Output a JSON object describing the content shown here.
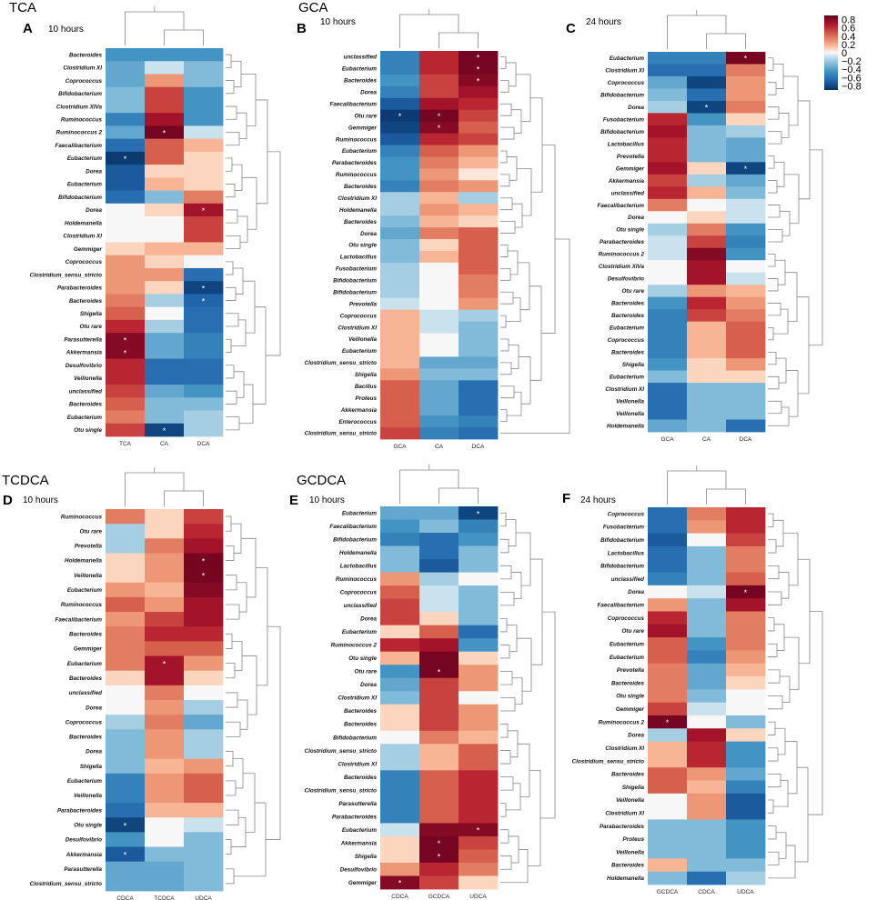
{
  "chart_data": [
    {
      "type": "heatmap",
      "letter": "A",
      "group_title": "TCA",
      "time": "10 hours",
      "columns": [
        "TCA",
        "CA",
        "DCA"
      ],
      "rows": [
        "Bacteroides",
        "Clostridium XI",
        "Coprococcus",
        "Bifidobacterium",
        "Clostridium XIVa",
        "Ruminococcus",
        "Ruminococcus 2",
        "Faecalibacterium",
        "Eubacterium",
        "Dorea",
        "Eubacterium",
        "Bifidobacterium",
        "Dorea",
        "Holdemanella",
        "Clostridium XI",
        "Gemmiger",
        "Coprococcus",
        "Clostridium_sensu_stricto",
        "Parabacteroides",
        "Bacteroides",
        "Shigella",
        "Otu rare",
        "Parasutterella",
        "Akkermansia",
        "Desulfovibrio",
        "Veillonella",
        "unclassified",
        "Bacteroides",
        "Eubacterium",
        "Otu single"
      ],
      "values": [
        [
          -0.5,
          -0.5,
          -0.5
        ],
        [
          -0.4,
          -0.1,
          -0.3
        ],
        [
          -0.4,
          0.3,
          -0.3
        ],
        [
          -0.3,
          0.6,
          -0.5
        ],
        [
          -0.3,
          0.6,
          -0.5
        ],
        [
          -0.6,
          0.8,
          -0.5
        ],
        [
          -0.4,
          0.95,
          -0.1
        ],
        [
          -0.7,
          0.5,
          0.2
        ],
        [
          -0.95,
          0.5,
          0.1
        ],
        [
          -0.8,
          0.1,
          0.1
        ],
        [
          -0.8,
          0.2,
          0.1
        ],
        [
          -0.7,
          -0.3,
          0.4
        ],
        [
          0,
          0.1,
          0.8
        ],
        [
          0,
          0,
          0.6
        ],
        [
          0,
          0,
          0.6
        ],
        [
          0.1,
          0.2,
          0.2
        ],
        [
          0.3,
          0.1,
          0
        ],
        [
          0.3,
          0.3,
          -0.7
        ],
        [
          0.3,
          0.1,
          -0.9
        ],
        [
          0.4,
          -0.2,
          -0.75
        ],
        [
          0.5,
          0,
          -0.7
        ],
        [
          0.7,
          -0.2,
          -0.7
        ],
        [
          0.9,
          -0.4,
          -0.6
        ],
        [
          0.9,
          -0.4,
          -0.6
        ],
        [
          0.7,
          -0.7,
          -0.7
        ],
        [
          0.7,
          -0.7,
          -0.7
        ],
        [
          0.6,
          -0.4,
          -0.5
        ],
        [
          0.5,
          -0.3,
          -0.3
        ],
        [
          0.4,
          -0.3,
          -0.2
        ],
        [
          0.6,
          -0.9,
          -0.2
        ]
      ],
      "significant": [
        [
          6,
          1
        ],
        [
          8,
          0
        ],
        [
          12,
          2
        ],
        [
          18,
          2
        ],
        [
          19,
          2
        ],
        [
          22,
          0
        ],
        [
          23,
          0
        ],
        [
          29,
          1
        ]
      ]
    },
    {
      "type": "heatmap",
      "letter": "B",
      "group_title": "GCA",
      "time": "10 hours",
      "columns": [
        "GCA",
        "CA",
        "DCA"
      ],
      "rows": [
        "unclassified",
        "Eubacterium",
        "Bacteroides",
        "Dorea",
        "Faecalibacterium",
        "Otu rare",
        "Gemmiger",
        "Ruminococcus",
        "Eubacterium",
        "Parabacteroides",
        "Ruminococcus",
        "Bacteroides",
        "Clostridium XI",
        "Holdemanella",
        "Bacteroides",
        "Dorea",
        "Otu single",
        "Lactobacillus",
        "Fusobacterium",
        "Bifidobacterium",
        "Bifidobacterium",
        "Prevotella",
        "Coprococcus",
        "Clostridium XI",
        "Veillonella",
        "Eubacterium",
        "Clostridium_sensu_stricto",
        "Shigella",
        "Bacillus",
        "Proteus",
        "Akkermansia",
        "Enterococcus",
        "Clostridium_sensu_stricto"
      ],
      "values": [
        [
          -0.6,
          0.7,
          0.95
        ],
        [
          -0.6,
          0.7,
          0.95
        ],
        [
          -0.5,
          0.6,
          0.9
        ],
        [
          -0.6,
          0.6,
          0.8
        ],
        [
          -0.8,
          0.8,
          0.7
        ],
        [
          -0.95,
          0.95,
          0.6
        ],
        [
          -0.9,
          0.9,
          0.5
        ],
        [
          -0.8,
          0.7,
          0.6
        ],
        [
          -0.6,
          0.5,
          0.3
        ],
        [
          -0.5,
          0.4,
          0.2
        ],
        [
          -0.5,
          0.3,
          0.05
        ],
        [
          -0.6,
          0.4,
          0.3
        ],
        [
          -0.2,
          0.2,
          -0.2
        ],
        [
          -0.2,
          0.3,
          0.2
        ],
        [
          -0.3,
          0.2,
          0.1
        ],
        [
          -0.4,
          0.4,
          0.5
        ],
        [
          -0.3,
          0.1,
          0.5
        ],
        [
          -0.3,
          0.2,
          0.5
        ],
        [
          -0.2,
          0,
          0.5
        ],
        [
          -0.2,
          0,
          0.4
        ],
        [
          -0.2,
          0,
          0.4
        ],
        [
          -0.1,
          0,
          0.3
        ],
        [
          0.2,
          -0.1,
          -0.2
        ],
        [
          0.2,
          -0.1,
          -0.3
        ],
        [
          0.2,
          0,
          -0.3
        ],
        [
          0.2,
          0,
          -0.3
        ],
        [
          0.2,
          -0.4,
          -0.4
        ],
        [
          0.3,
          -0.3,
          -0.3
        ],
        [
          0.5,
          -0.4,
          -0.7
        ],
        [
          0.5,
          -0.4,
          -0.7
        ],
        [
          0.5,
          -0.4,
          -0.7
        ],
        [
          0.5,
          -0.5,
          -0.6
        ],
        [
          0.6,
          -0.6,
          -0.7
        ]
      ],
      "significant": [
        [
          0,
          2
        ],
        [
          1,
          2
        ],
        [
          2,
          2
        ],
        [
          5,
          0
        ],
        [
          5,
          1
        ],
        [
          6,
          1
        ]
      ]
    },
    {
      "type": "heatmap",
      "letter": "C",
      "group_title": "",
      "time": "24 hours",
      "columns": [
        "GCA",
        "CA",
        "DCA"
      ],
      "rows": [
        "Eubacterium",
        "Clostridium XI",
        "Coprococcus",
        "Bifidobacterium",
        "Dorea",
        "Fusobacterium",
        "Bifidobacterium",
        "Lactobacillus",
        "Prevotella",
        "Gemmiger",
        "Akkermansia",
        "unclassified",
        "Faecalibacterium",
        "Dorea",
        "Otu single",
        "Parabacteroides",
        "Ruminococcus 2",
        "Clostridium XIVa",
        "Desulfovibrio",
        "Otu rare",
        "Bacteroides",
        "Bacteroides",
        "Eubacterium",
        "Coprococcus",
        "Bacteroides",
        "Shigella",
        "Eubacterium",
        "Clostridium XI",
        "Veillonella",
        "Veillonella",
        "Holdemanella"
      ],
      "values": [
        [
          -0.6,
          -0.6,
          0.95
        ],
        [
          -0.7,
          -0.7,
          0.4
        ],
        [
          -0.4,
          -0.9,
          0.3
        ],
        [
          -0.3,
          -0.7,
          0.3
        ],
        [
          -0.2,
          -0.9,
          0.4
        ],
        [
          0.7,
          -0.5,
          0.1
        ],
        [
          0.8,
          -0.3,
          -0.2
        ],
        [
          0.7,
          -0.3,
          -0.4
        ],
        [
          0.7,
          -0.3,
          -0.4
        ],
        [
          0.8,
          0.1,
          -0.9
        ],
        [
          0.6,
          -0.2,
          -0.4
        ],
        [
          0.7,
          0.2,
          -0.3
        ],
        [
          0.4,
          0,
          -0.1
        ],
        [
          0,
          0.1,
          -0.1
        ],
        [
          -0.2,
          0.4,
          -0.5
        ],
        [
          -0.1,
          0.6,
          -0.6
        ],
        [
          -0.1,
          0.9,
          -0.5
        ],
        [
          0,
          0.8,
          0
        ],
        [
          0,
          0.8,
          -0.1
        ],
        [
          -0.2,
          0.3,
          0.2
        ],
        [
          -0.5,
          0.7,
          0.3
        ],
        [
          -0.6,
          0.6,
          0.4
        ],
        [
          -0.6,
          0.2,
          0.5
        ],
        [
          -0.6,
          0.2,
          0.5
        ],
        [
          -0.6,
          0.2,
          0.5
        ],
        [
          -0.5,
          0.1,
          0.3
        ],
        [
          -0.3,
          0.1,
          0.1
        ],
        [
          -0.7,
          -0.3,
          -0.3
        ],
        [
          -0.7,
          -0.3,
          -0.3
        ],
        [
          -0.7,
          -0.3,
          -0.3
        ],
        [
          -0.4,
          -0.3,
          -0.7
        ]
      ],
      "significant": [
        [
          0,
          2
        ],
        [
          4,
          1
        ],
        [
          9,
          2
        ]
      ]
    },
    {
      "type": "heatmap",
      "letter": "D",
      "group_title": "TCDCA",
      "time": "10 hours",
      "columns": [
        "CDCA",
        "TCDCA",
        "UDCA"
      ],
      "rows": [
        "Ruminococcus",
        "Otu rare",
        "Prevotella",
        "Holdemanella",
        "Veillonella",
        "Eubacterium",
        "Ruminococcus",
        "Faecalibacterium",
        "Bacteroides",
        "Gemmiger",
        "Eubacterium",
        "Bacteroides",
        "unclassified",
        "Dorea",
        "Coprococcus",
        "Bacteroides",
        "Dorea",
        "Shigella",
        "Eubacterium",
        "Veillonella",
        "Parabacteroides",
        "Otu single",
        "Desulfovibrio",
        "Akkermansia",
        "Parasutterella",
        "Clostridium_sensu_stricto"
      ],
      "values": [
        [
          0.4,
          0.1,
          0.6
        ],
        [
          -0.2,
          0.1,
          0.7
        ],
        [
          -0.2,
          0.4,
          0.8
        ],
        [
          0.1,
          0.3,
          0.95
        ],
        [
          0.1,
          0.3,
          0.95
        ],
        [
          0.3,
          0.2,
          0.9
        ],
        [
          0.5,
          0.3,
          0.8
        ],
        [
          0.3,
          0.6,
          0.8
        ],
        [
          0.4,
          0.7,
          0.7
        ],
        [
          0.4,
          0.5,
          0.5
        ],
        [
          0.4,
          0.8,
          0.3
        ],
        [
          0.1,
          0.8,
          0.1
        ],
        [
          0,
          0.4,
          0
        ],
        [
          0,
          0.3,
          -0.2
        ],
        [
          -0.2,
          0.4,
          -0.4
        ],
        [
          -0.3,
          0.3,
          -0.2
        ],
        [
          -0.3,
          0.3,
          -0.2
        ],
        [
          -0.3,
          0.2,
          0.3
        ],
        [
          -0.6,
          0.3,
          0.5
        ],
        [
          -0.6,
          0.3,
          0.5
        ],
        [
          -0.7,
          0.2,
          0.2
        ],
        [
          -0.9,
          0,
          -0.1
        ],
        [
          -0.5,
          0,
          -0.3
        ],
        [
          -0.8,
          -0.3,
          -0.3
        ],
        [
          -0.4,
          -0.4,
          -0.3
        ],
        [
          -0.4,
          -0.4,
          -0.3
        ]
      ],
      "significant": [
        [
          3,
          2
        ],
        [
          4,
          2
        ],
        [
          10,
          1
        ],
        [
          21,
          0
        ],
        [
          23,
          0
        ]
      ]
    },
    {
      "type": "heatmap",
      "letter": "E",
      "group_title": "GCDCA",
      "time": "10 hours",
      "columns": [
        "CDCA",
        "GCDCA",
        "UDCA"
      ],
      "rows": [
        "Eubacterium",
        "Faecalibacterium",
        "Bifidobacterium",
        "Holdemanella",
        "Lactobacillus",
        "Ruminococcus",
        "Coprococcus",
        "unclassified",
        "Dorea",
        "Eubacterium",
        "Ruminococcus 2",
        "Otu single",
        "Otu rare",
        "Dorea",
        "Clostridium XI",
        "Bacteroides",
        "Bacteroides",
        "Bifidobacterium",
        "Clostridium_sensu_stricto",
        "Clostridium XI",
        "Bacteroides",
        "Clostridium_sensu_stricto",
        "Parasutterella",
        "Parabacteroides",
        "Eubacterium",
        "Akkermansia",
        "Shigella",
        "Desulfovibrio",
        "Gemmiger"
      ],
      "values": [
        [
          -0.4,
          -0.4,
          -0.9
        ],
        [
          -0.5,
          -0.3,
          -0.6
        ],
        [
          -0.6,
          -0.7,
          -0.5
        ],
        [
          -0.3,
          -0.7,
          -0.3
        ],
        [
          -0.3,
          -0.8,
          -0.3
        ],
        [
          0.3,
          -0.2,
          0
        ],
        [
          0.5,
          -0.1,
          -0.3
        ],
        [
          0.6,
          -0.1,
          -0.3
        ],
        [
          0.6,
          0.1,
          -0.3
        ],
        [
          0.1,
          0.5,
          -0.7
        ],
        [
          0.7,
          0.8,
          -0.5
        ],
        [
          0.2,
          0.95,
          0.1
        ],
        [
          -0.5,
          0.95,
          0.3
        ],
        [
          -0.4,
          0.6,
          0.3
        ],
        [
          -0.3,
          0.6,
          0
        ],
        [
          0.1,
          0.6,
          0.3
        ],
        [
          0.1,
          0.6,
          0.3
        ],
        [
          0,
          0.4,
          0.2
        ],
        [
          -0.2,
          0.2,
          0.5
        ],
        [
          -0.2,
          0.2,
          0.5
        ],
        [
          -0.6,
          0.5,
          0.7
        ],
        [
          -0.6,
          0.5,
          0.7
        ],
        [
          -0.6,
          0.5,
          0.7
        ],
        [
          -0.6,
          0.5,
          0.7
        ],
        [
          -0.1,
          0.9,
          0.9
        ],
        [
          0.1,
          0.95,
          0.6
        ],
        [
          0.1,
          0.95,
          0.5
        ],
        [
          0.3,
          0.7,
          0.4
        ],
        [
          0.9,
          0.6,
          0.1
        ]
      ],
      "significant": [
        [
          0,
          2
        ],
        [
          12,
          1
        ],
        [
          24,
          2
        ],
        [
          25,
          1
        ],
        [
          26,
          1
        ],
        [
          28,
          0
        ]
      ]
    },
    {
      "type": "heatmap",
      "letter": "F",
      "group_title": "",
      "time": "24 hours",
      "columns": [
        "GCDCA",
        "CDCA",
        "UDCA"
      ],
      "rows": [
        "Coprococcus",
        "Fusobacterium",
        "Bifidobacterium",
        "Lactobacillus",
        "Bifidobacterium",
        "unclassified",
        "Dorea",
        "Faecalibacterium",
        "Coprococcus",
        "Otu rare",
        "Eubacterium",
        "Eubacterium",
        "Prevotella",
        "Bacteroides",
        "Otu single",
        "Gemmiger",
        "Ruminococcus 2",
        "Dorea",
        "Clostridium XI",
        "Clostridium_sensu_stricto",
        "Bacteroides",
        "Shigella",
        "Veillonella",
        "Clostridium XI",
        "Parabacteroides",
        "Proteus",
        "Veillonella",
        "Bacteroides",
        "Holdemanella"
      ],
      "values": [
        [
          -0.7,
          0.4,
          0.7
        ],
        [
          -0.7,
          0.3,
          0.7
        ],
        [
          -0.8,
          0,
          0.6
        ],
        [
          -0.7,
          -0.3,
          0.4
        ],
        [
          -0.7,
          -0.3,
          0.4
        ],
        [
          -0.6,
          -0.3,
          0.5
        ],
        [
          0,
          -0.1,
          0.95
        ],
        [
          0.3,
          -0.3,
          0.8
        ],
        [
          0.7,
          -0.3,
          0.4
        ],
        [
          0.8,
          -0.3,
          0.4
        ],
        [
          0.5,
          -0.5,
          0.4
        ],
        [
          0.5,
          -0.6,
          0.3
        ],
        [
          0.4,
          -0.4,
          0.2
        ],
        [
          0.4,
          -0.4,
          0.1
        ],
        [
          0.4,
          -0.3,
          0
        ],
        [
          0.6,
          -0.1,
          0
        ],
        [
          0.95,
          0,
          -0.3
        ],
        [
          -0.2,
          0.8,
          0.1
        ],
        [
          0.2,
          0.7,
          -0.5
        ],
        [
          0.2,
          0.7,
          -0.5
        ],
        [
          0.5,
          0.3,
          -0.4
        ],
        [
          0.5,
          0.2,
          -0.6
        ],
        [
          0,
          0.3,
          -0.8
        ],
        [
          0,
          0.3,
          -0.8
        ],
        [
          -0.3,
          -0.3,
          -0.5
        ],
        [
          -0.3,
          -0.3,
          -0.5
        ],
        [
          -0.3,
          -0.3,
          -0.5
        ],
        [
          0.2,
          -0.3,
          -0.3
        ],
        [
          -0.3,
          -0.7,
          -0.2
        ]
      ],
      "significant": [
        [
          6,
          2
        ],
        [
          16,
          0
        ]
      ]
    }
  ],
  "colorbar": {
    "ticks": [
      "0.8",
      "0.6",
      "0.4",
      "0.2",
      "0",
      "−0.2",
      "−0.4",
      "−0.6",
      "−0.8"
    ],
    "min": -0.9,
    "max": 0.9
  },
  "significance_marker": "*",
  "colors": {
    "negative": "#053061",
    "neutral": "#f7f7f7",
    "positive": "#67001f"
  }
}
